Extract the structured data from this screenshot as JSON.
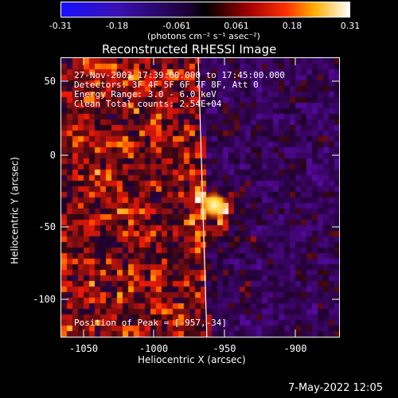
{
  "colorbar": {
    "ticks": [
      "-0.31",
      "-0.18",
      "-0.061",
      "0.061",
      "0.18",
      "0.31"
    ],
    "units": "(photons cm⁻² s⁻¹ asec⁻²)",
    "colors": {
      "low": "#1a10ff",
      "mid": "#000000",
      "high": "#ffffff"
    }
  },
  "plot": {
    "title": "Reconstructed RHESSI Image",
    "info_lines": [
      "27-Nov-2003 17:39:00.000 to 17:45:00.000",
      "Detectors: 3F 4F 5F 6F 7F 8F, Att 0",
      "Energy Range: 3.0 - 6.0 keV",
      "Clean    Total counts: 2.54E+04"
    ],
    "peak_text": "Position of Peak = [-957,-34]",
    "xlabel": "Heliocentric X (arcsec)",
    "ylabel": "Heliocentric Y (arcsec)",
    "x_ticks": [
      "-1050",
      "-1000",
      "-950",
      "-900"
    ],
    "y_ticks": [
      "50",
      "0",
      "-50",
      "-100"
    ]
  },
  "footer": {
    "date": "7-May-2022 12:05"
  }
}
